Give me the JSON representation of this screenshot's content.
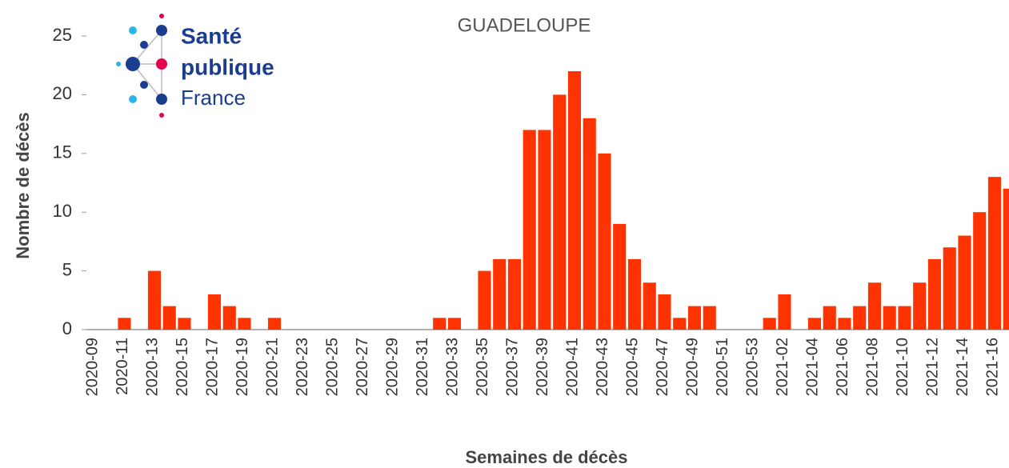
{
  "chart_data": {
    "type": "bar",
    "title": "GUADELOUPE",
    "logo": {
      "line1": "Santé",
      "line2": "publique",
      "line3": "France"
    },
    "x_label": "Semaines de décès",
    "y_label": "Nombre de décès",
    "categories": [
      "2020-09",
      null,
      "2020-11",
      null,
      "2020-13",
      null,
      "2020-15",
      null,
      "2020-17",
      null,
      "2020-19",
      null,
      "2020-21",
      null,
      "2020-23",
      null,
      "2020-25",
      null,
      "2020-27",
      null,
      "2020-29",
      null,
      "2020-31",
      null,
      "2020-33",
      null,
      "2020-35",
      null,
      "2020-37",
      null,
      "2020-39",
      null,
      "2020-41",
      null,
      "2020-43",
      null,
      "2020-45",
      null,
      "2020-47",
      null,
      "2020-49",
      null,
      "2020-51",
      null,
      "2020-53",
      null,
      "2021-02",
      null,
      "2021-04",
      null,
      "2021-06",
      null,
      "2021-08",
      null,
      "2021-10",
      null,
      "2021-12",
      null,
      "2021-14",
      null,
      "2021-16",
      null
    ],
    "values": [
      0,
      0,
      1,
      0,
      5,
      2,
      1,
      0,
      3,
      2,
      1,
      0,
      1,
      0,
      0,
      0,
      0,
      0,
      0,
      0,
      0,
      0,
      0,
      1,
      1,
      0,
      5,
      6,
      6,
      17,
      17,
      20,
      22,
      18,
      15,
      9,
      6,
      4,
      3,
      1,
      2,
      2,
      0,
      0,
      0,
      1,
      3,
      0,
      1,
      2,
      1,
      2,
      4,
      2,
      2,
      4,
      6,
      7,
      8,
      10,
      13,
      12
    ],
    "color": "#ff3300",
    "ylim": [
      0,
      25
    ],
    "yticks": [
      0,
      5,
      10,
      15,
      20,
      25
    ],
    "grid": false
  }
}
